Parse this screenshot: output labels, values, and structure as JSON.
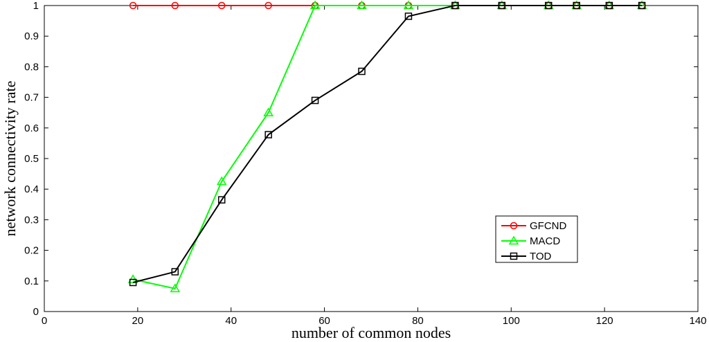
{
  "chart_data": {
    "type": "line",
    "title": "",
    "xlabel": "number of common nodes",
    "ylabel": "network connectivity rate",
    "xlim": [
      0,
      140
    ],
    "ylim": [
      0,
      1
    ],
    "xticks": [
      0,
      20,
      40,
      60,
      80,
      100,
      120,
      140
    ],
    "yticks": [
      0,
      0.1,
      0.2,
      0.3,
      0.4,
      0.5,
      0.6,
      0.7,
      0.8,
      0.9,
      1
    ],
    "grid": false,
    "legend_position": "lower-right",
    "series": [
      {
        "name": "GFCND",
        "color": "#ff0000",
        "marker": "circle",
        "x": [
          19,
          28,
          38,
          48,
          58,
          68,
          78,
          88,
          98,
          108,
          114,
          121,
          128
        ],
        "y": [
          1,
          1,
          1,
          1,
          1,
          1,
          1,
          1,
          1,
          1,
          1,
          1,
          1
        ]
      },
      {
        "name": "MACD",
        "color": "#00ff00",
        "marker": "triangle",
        "x": [
          19,
          28,
          38,
          48,
          58,
          68,
          78,
          88,
          98,
          108,
          114,
          121,
          128
        ],
        "y": [
          0.105,
          0.075,
          0.425,
          0.65,
          1,
          1,
          1,
          1,
          1,
          1,
          1,
          1,
          1
        ]
      },
      {
        "name": "TOD",
        "color": "#000000",
        "marker": "square",
        "x": [
          19,
          28,
          38,
          48,
          58,
          68,
          78,
          88,
          98,
          108,
          114,
          121,
          128
        ],
        "y": [
          0.095,
          0.13,
          0.365,
          0.578,
          0.69,
          0.785,
          0.965,
          1,
          1,
          1,
          1,
          1,
          1
        ]
      }
    ]
  }
}
